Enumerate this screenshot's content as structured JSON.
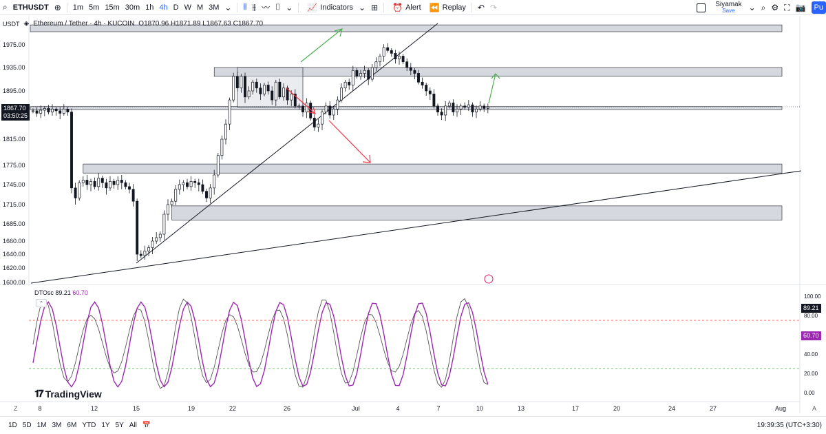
{
  "toolbar": {
    "symbol": "ETHUSDT",
    "timeframes": [
      "1m",
      "5m",
      "15m",
      "30m",
      "1h",
      "4h",
      "D",
      "W",
      "M",
      "3M"
    ],
    "active_timeframe": "4h",
    "indicators_label": "Indicators",
    "alert_label": "Alert",
    "replay_label": "Replay",
    "user_name": "Siyamak",
    "save_label": "Save",
    "publish_label": "Pu"
  },
  "legend": {
    "currency": "USDT",
    "title": "Ethereum / Tether · 4h · KUCOIN",
    "ohlc": "O1870.96 H1871.89 L1867.63 C1867.70"
  },
  "current_price": {
    "price": "1867.70",
    "countdown": "03:50:25"
  },
  "oscillator": {
    "name": "DTOsc",
    "value1": "89.21",
    "value2": "60.70"
  },
  "branding": {
    "logo_text": "TradingView"
  },
  "bottom": {
    "ranges": [
      "1D",
      "5D",
      "1M",
      "3M",
      "6M",
      "YTD",
      "1Y",
      "5Y",
      "All"
    ],
    "time": "19:39:35 (UTC+3:30)"
  },
  "colors": {
    "candle": "#131722",
    "zone_fill": "#d1d4dc",
    "osc_fast": "#555555",
    "osc_slow": "#9c27b0",
    "overbought": "#f44336",
    "oversold": "#4caf50",
    "arrow_up": "#4caf50",
    "arrow_down": "#f23645"
  },
  "chart_data": {
    "type": "candlestick",
    "y_ticks": [
      "1975.00",
      "1935.00",
      "1895.00",
      "1815.00",
      "1775.00",
      "1745.00",
      "1715.00",
      "1685.00",
      "1660.00",
      "1640.00",
      "1620.00",
      "1600.00"
    ],
    "y_values": [
      1975,
      1935,
      1895,
      1815,
      1775,
      1745,
      1715,
      1685,
      1660,
      1640,
      1620,
      1600
    ],
    "x_ticks": [
      "8",
      "12",
      "15",
      "19",
      "22",
      "26",
      "Jul",
      "4",
      "7",
      "10",
      "13",
      "17",
      "20",
      "24",
      "27",
      "Aug"
    ],
    "osc_ticks": [
      "100.00",
      "80.00",
      "40.00",
      "20.00",
      "0.00"
    ],
    "osc_tick_values": [
      100,
      80,
      40,
      20,
      0
    ],
    "osc_levels": [
      75,
      25
    ],
    "zones": [
      {
        "from_index": 0,
        "to_index": 200,
        "low": 1998,
        "high": 2010
      },
      {
        "from_index": 47,
        "to_index": 200,
        "low": 1920,
        "high": 1935
      },
      {
        "from_index": 13,
        "to_index": 200,
        "low": 1763,
        "high": 1777
      },
      {
        "from_index": 36,
        "to_index": 200,
        "low": 1691,
        "high": 1713
      },
      {
        "from_index": 0,
        "to_index": 200,
        "low": 1864,
        "high": 1869
      },
      {
        "from_index": 53,
        "to_index": 70,
        "low": 1868,
        "high": 1935
      }
    ],
    "closes": [
      1862,
      1858,
      1863,
      1866,
      1860,
      1865,
      1862,
      1858,
      1865,
      1860,
      1740,
      1725,
      1748,
      1752,
      1745,
      1750,
      1742,
      1755,
      1748,
      1740,
      1750,
      1745,
      1752,
      1748,
      1742,
      1738,
      1720,
      1640,
      1638,
      1645,
      1650,
      1660,
      1665,
      1670,
      1700,
      1715,
      1720,
      1738,
      1745,
      1748,
      1742,
      1750,
      1748,
      1745,
      1735,
      1725,
      1740,
      1760,
      1790,
      1815,
      1840,
      1880,
      1920,
      1900,
      1920,
      1885,
      1895,
      1910,
      1900,
      1890,
      1905,
      1895,
      1880,
      1910,
      1885,
      1900,
      1880,
      1890,
      1870,
      1870,
      1860,
      1875,
      1850,
      1835,
      1840,
      1860,
      1870,
      1855,
      1865,
      1880,
      1900,
      1910,
      1905,
      1930,
      1920,
      1925,
      1930,
      1915,
      1935,
      1945,
      1955,
      1970,
      1965,
      1960,
      1950,
      1955,
      1945,
      1935,
      1930,
      1925,
      1910,
      1905,
      1895,
      1890,
      1870,
      1860,
      1855,
      1870,
      1875,
      1860,
      1865,
      1870,
      1868,
      1872,
      1860,
      1865,
      1870,
      1866,
      1868
    ]
  }
}
